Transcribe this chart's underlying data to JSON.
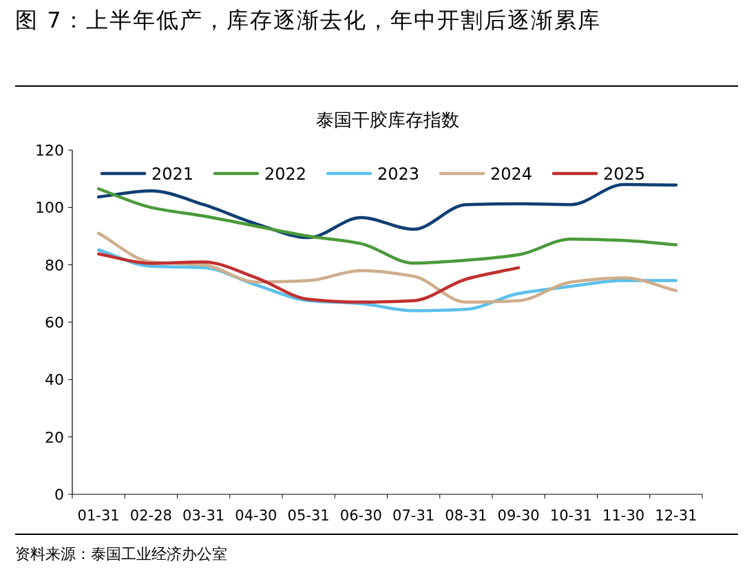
{
  "chart_data": {
    "type": "line",
    "title": "图 7：上半年低产，库存逐渐去化，年中开割后逐渐累库",
    "subtitle": "泰国干胶库存指数",
    "annotations": [
      "资料来源：泰国工业经济办公室"
    ],
    "categories": [
      "01-31",
      "02-28",
      "03-31",
      "04-30",
      "05-31",
      "06-30",
      "07-31",
      "08-31",
      "09-30",
      "10-31",
      "11-30",
      "12-31"
    ],
    "ylim": [
      0,
      120
    ],
    "yticks": [
      0,
      20,
      40,
      60,
      80,
      100,
      120
    ],
    "legend": "top",
    "series": [
      {
        "name": "2021",
        "color": "#0e3f73",
        "values": [
          103.7,
          105.8,
          101,
          94.3,
          89.5,
          96.5,
          92.4,
          101,
          101.3,
          101,
          108,
          107.8
        ]
      },
      {
        "name": "2022",
        "color": "#4a9a3a",
        "values": [
          106.5,
          100,
          97,
          93.5,
          90,
          87.4,
          80.6,
          81.6,
          83.5,
          89,
          88.5,
          87
        ]
      },
      {
        "name": "2023",
        "color": "#5bc0eb",
        "values": [
          85.2,
          79.5,
          79,
          73,
          67.5,
          66.5,
          64,
          64.5,
          70,
          72.5,
          74.5,
          74.5
        ]
      },
      {
        "name": "2024",
        "color": "#cfae8c",
        "values": [
          91,
          81,
          80,
          74,
          74.5,
          78,
          76,
          67,
          67.5,
          74,
          75.5,
          71
        ]
      },
      {
        "name": "2025",
        "color": "#c0302f",
        "values": [
          83.8,
          80.5,
          81,
          75.5,
          68,
          67,
          67.5,
          75,
          79,
          null,
          null,
          null
        ]
      }
    ]
  }
}
